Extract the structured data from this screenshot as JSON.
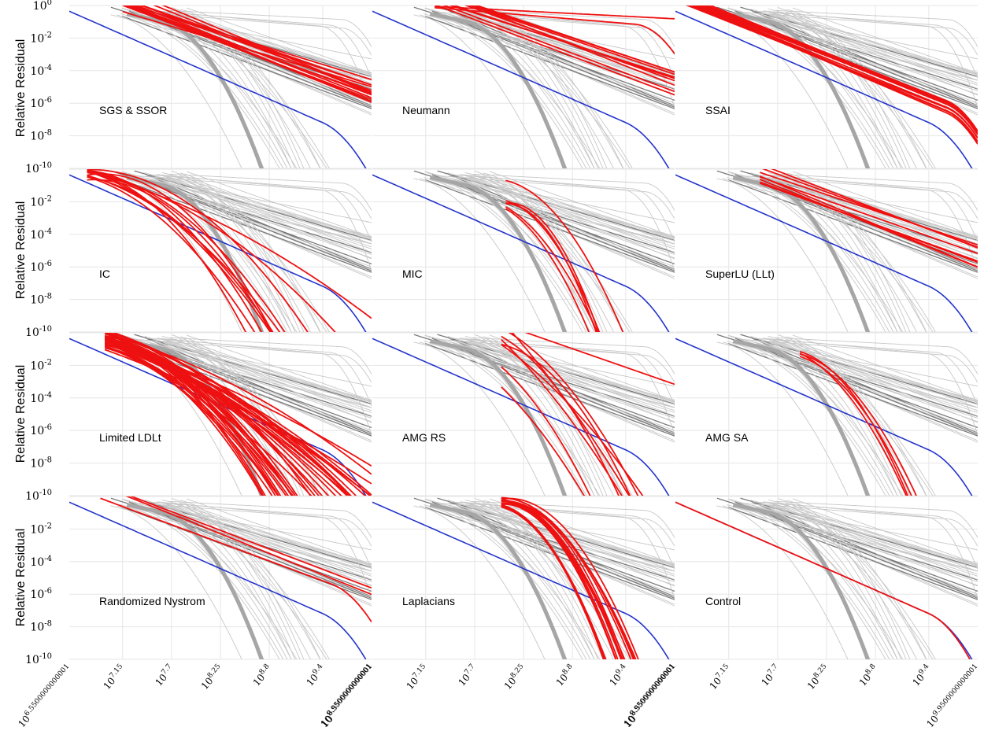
{
  "figure": {
    "ylabel": "Relative Residual",
    "colors": {
      "highlight": "#ee1111",
      "reference": "#2233cc",
      "background": "#c8c8c8",
      "dark": "#7a7a7a",
      "band": "#a6a6a6"
    }
  },
  "chart_data": {
    "type": "line",
    "yscale": "log",
    "xscale": "log",
    "grid": true,
    "ylim": [
      1e-10,
      1
    ],
    "ytick_labels": [
      "10^0",
      "10^-2",
      "10^-4",
      "10^-6",
      "10^-8",
      "10^-10"
    ],
    "xtick_labels": [
      "10^6.5500000000001",
      "10^7.15",
      "10^7.7",
      "10^8.25",
      "10^8.8",
      "10^9.4",
      "10^9.9500000000001"
    ],
    "xlim_log10": [
      6.55,
      9.95
    ],
    "panels": [
      {
        "title": "SGS & SSOR"
      },
      {
        "title": "Neumann"
      },
      {
        "title": "SSAI"
      },
      {
        "title": "IC"
      },
      {
        "title": "MIC"
      },
      {
        "title": "SuperLU (LLt)"
      },
      {
        "title": "Limited LDLt"
      },
      {
        "title": "AMG RS"
      },
      {
        "title": "AMG SA"
      },
      {
        "title": "Randomized Nystrom"
      },
      {
        "title": "Laplacians"
      },
      {
        "title": "Control"
      }
    ]
  }
}
